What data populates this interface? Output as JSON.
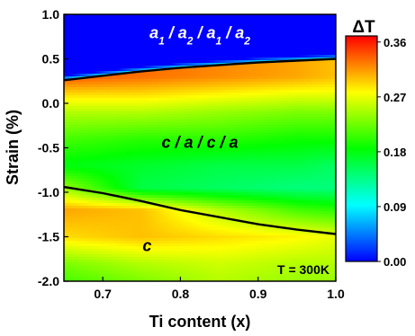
{
  "chart_data": {
    "type": "heatmap",
    "title": "",
    "xlabel": "Ti content (x)",
    "ylabel": "Strain (%)",
    "xlim": [
      0.65,
      1.0
    ],
    "ylim": [
      -2.0,
      1.0
    ],
    "x_ticks": [
      "0.7",
      "0.8",
      "0.9",
      "1.0"
    ],
    "x_tick_values": [
      0.7,
      0.8,
      0.9,
      1.0
    ],
    "y_ticks": [
      "1.0",
      "0.5",
      "0.0",
      "-0.5",
      "-1.0",
      "-1.5",
      "-2.0"
    ],
    "y_tick_values": [
      1.0,
      0.5,
      0.0,
      -0.5,
      -1.0,
      -1.5,
      -2.0
    ],
    "colorbar": {
      "label": "ΔT",
      "min": 0.0,
      "max": 0.37,
      "ticks": [
        "0.36",
        "0.27",
        "0.18",
        "0.09",
        "0.00"
      ],
      "tick_values": [
        0.36,
        0.27,
        0.18,
        0.09,
        0.0
      ],
      "colors": [
        "#0000ff",
        "#00ffff",
        "#00ff00",
        "#ffff00",
        "#ff0000"
      ]
    },
    "phase_boundaries": [
      {
        "x": [
          0.65,
          0.7,
          0.75,
          0.8,
          0.85,
          0.9,
          0.95,
          1.0
        ],
        "y": [
          0.26,
          0.31,
          0.36,
          0.4,
          0.43,
          0.46,
          0.48,
          0.5
        ]
      },
      {
        "x": [
          0.65,
          0.7,
          0.75,
          0.8,
          0.85,
          0.9,
          0.95,
          1.0
        ],
        "y": [
          -0.94,
          -1.01,
          -1.1,
          -1.2,
          -1.28,
          -1.36,
          -1.42,
          -1.47
        ]
      }
    ],
    "phase_labels": [
      {
        "parts": [
          [
            "a",
            "1"
          ],
          [
            "a",
            "2"
          ],
          [
            "a",
            "1"
          ],
          [
            "a",
            "2"
          ]
        ],
        "x": 0.825,
        "y": 0.73
      },
      {
        "text": "c / a / c / a",
        "x": 0.825,
        "y": -0.5
      },
      {
        "text": "c",
        "x": 0.757,
        "y": -1.66
      }
    ],
    "annotation": "T = 300K",
    "surface_anchors": {
      "x": [
        0.65,
        0.75,
        0.85,
        0.95,
        1.0
      ],
      "y": [
        0.3,
        0.1,
        -0.1,
        -0.4,
        -0.7,
        -0.95,
        -1.2,
        -1.5,
        -1.8,
        -2.0
      ],
      "values": [
        [
          0.34,
          0.33,
          0.32,
          0.31,
          0.3
        ],
        [
          0.29,
          0.29,
          0.28,
          0.27,
          0.27
        ],
        [
          0.25,
          0.25,
          0.24,
          0.23,
          0.23
        ],
        [
          0.21,
          0.2,
          0.2,
          0.19,
          0.19
        ],
        [
          0.18,
          0.17,
          0.16,
          0.16,
          0.15
        ],
        [
          0.24,
          0.16,
          0.15,
          0.14,
          0.14
        ],
        [
          0.31,
          0.3,
          0.25,
          0.21,
          0.2
        ],
        [
          0.29,
          0.3,
          0.29,
          0.28,
          0.27
        ],
        [
          0.23,
          0.25,
          0.26,
          0.25,
          0.25
        ],
        [
          0.21,
          0.23,
          0.25,
          0.24,
          0.24
        ]
      ],
      "top_phase_value": 0.0
    }
  }
}
